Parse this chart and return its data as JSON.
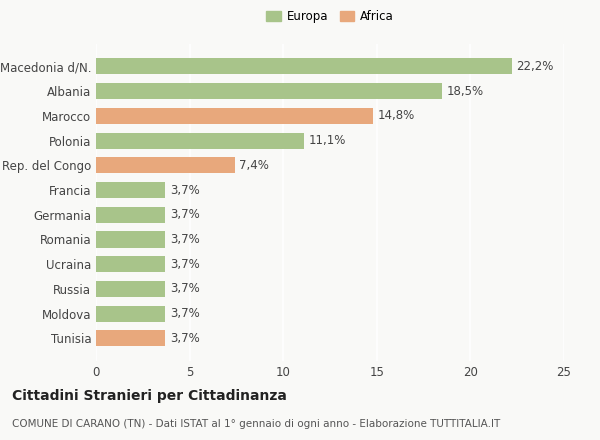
{
  "categories": [
    "Tunisia",
    "Moldova",
    "Russia",
    "Ucraina",
    "Romania",
    "Germania",
    "Francia",
    "Rep. del Congo",
    "Polonia",
    "Marocco",
    "Albania",
    "Macedonia d/N."
  ],
  "values": [
    3.7,
    3.7,
    3.7,
    3.7,
    3.7,
    3.7,
    3.7,
    7.4,
    11.1,
    14.8,
    18.5,
    22.2
  ],
  "labels": [
    "3,7%",
    "3,7%",
    "3,7%",
    "3,7%",
    "3,7%",
    "3,7%",
    "3,7%",
    "7,4%",
    "11,1%",
    "14,8%",
    "18,5%",
    "22,2%"
  ],
  "colors": [
    "#e8a87c",
    "#a8c48a",
    "#a8c48a",
    "#a8c48a",
    "#a8c48a",
    "#a8c48a",
    "#a8c48a",
    "#e8a87c",
    "#a8c48a",
    "#e8a87c",
    "#a8c48a",
    "#a8c48a"
  ],
  "europa_color": "#a8c48a",
  "africa_color": "#e8a87c",
  "xlim": [
    0,
    25
  ],
  "xticks": [
    0,
    5,
    10,
    15,
    20,
    25
  ],
  "title": "Cittadini Stranieri per Cittadinanza",
  "subtitle": "COMUNE DI CARANO (TN) - Dati ISTAT al 1° gennaio di ogni anno - Elaborazione TUTTITALIA.IT",
  "bg_color": "#f9f9f7",
  "bar_height": 0.65,
  "grid_color": "#ffffff",
  "label_fontsize": 8.5,
  "tick_fontsize": 8.5,
  "title_fontsize": 10,
  "subtitle_fontsize": 7.5
}
